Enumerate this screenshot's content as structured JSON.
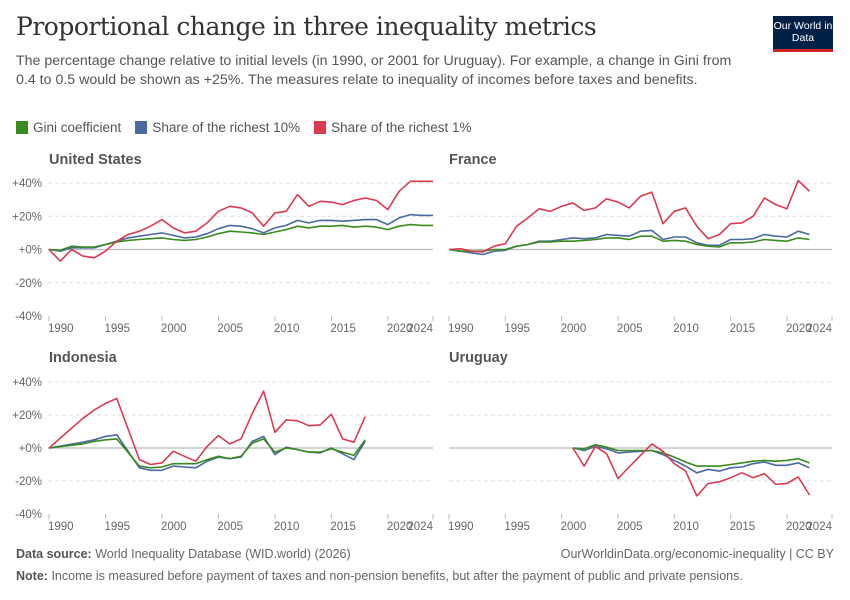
{
  "header": {
    "title": "Proportional change in three inequality metrics",
    "subtitle": "The percentage change relative to initial levels (in 1990, or 2001 for Uruguay). For example, a change in Gini from 0.4 to 0.5 would be shown as +25%. The measures relate to inequality of incomes before taxes and benefits.",
    "logo_text": "Our World in Data"
  },
  "footer": {
    "source_label": "Data source:",
    "source_text": "World Inequality Database (WID.world) (2026)",
    "url": "OurWorldinData.org/economic-inequality | CC BY",
    "note_label": "Note:",
    "note_text": "Income is measured before payment of taxes and non-pension benefits, but after the payment of public and private pensions."
  },
  "chart_data": {
    "type": "line",
    "layout": "small-multiples 2x2",
    "xlim": [
      1990,
      2024
    ],
    "ylim": [
      -40,
      40
    ],
    "xticks": [
      "1990",
      "1995",
      "2000",
      "2005",
      "2010",
      "2015",
      "2020",
      "2024"
    ],
    "yticks": [
      "+40%",
      "+20%",
      "+0%",
      "-20%",
      "-40%"
    ],
    "ytick_values": [
      40,
      20,
      0,
      -20,
      -40
    ],
    "xtick_values": [
      1990,
      1995,
      2000,
      2005,
      2010,
      2015,
      2020,
      2024
    ],
    "grid": "horizontal dashed",
    "legend_position": "top-left",
    "legend": [
      {
        "name": "Gini coefficient",
        "color": "#3a8b1f"
      },
      {
        "name": "Share of the richest 10%",
        "color": "#4a6a9e"
      },
      {
        "name": "Share of the richest 1%",
        "color": "#dc3a52"
      }
    ],
    "panels": [
      {
        "title": "United States",
        "years": [
          1990,
          1991,
          1992,
          1993,
          1994,
          1995,
          1996,
          1997,
          1998,
          1999,
          2000,
          2001,
          2002,
          2003,
          2004,
          2005,
          2006,
          2007,
          2008,
          2009,
          2010,
          2011,
          2012,
          2013,
          2014,
          2015,
          2016,
          2017,
          2018,
          2019,
          2020,
          2021,
          2022,
          2023,
          2024
        ],
        "series": [
          {
            "name": "Share of the richest 10%",
            "values": [
              0,
              -1,
              1,
              1,
              1,
              3,
              5,
              7,
              8,
              9,
              10,
              8.5,
              7,
              7.5,
              9.5,
              12.5,
              14.5,
              14,
              12.5,
              10,
              13,
              14.5,
              17.5,
              16,
              17.5,
              17.5,
              17,
              17.5,
              18,
              18,
              15,
              19,
              21,
              20.5,
              20.5
            ]
          },
          {
            "name": "Gini coefficient",
            "values": [
              0,
              -0.5,
              2,
              1.5,
              1.5,
              3,
              4.5,
              5.5,
              6,
              6.5,
              7,
              6,
              5.5,
              6,
              7.5,
              9.5,
              11,
              10.5,
              10,
              9,
              10.5,
              12,
              14,
              13,
              14,
              14,
              14.5,
              13.5,
              14,
              13.5,
              12,
              14,
              15,
              14.5,
              14.5
            ]
          },
          {
            "name": "Share of the richest 1%",
            "values": [
              0,
              -7,
              0,
              -4,
              -5,
              -1,
              5,
              9,
              11,
              14,
              18,
              13,
              10,
              11,
              16,
              23,
              26,
              25,
              22,
              14,
              22,
              23,
              33,
              26,
              29,
              28.5,
              27,
              29.5,
              31,
              29.5,
              24,
              35,
              41,
              41,
              41
            ]
          }
        ]
      },
      {
        "title": "France",
        "years": [
          1990,
          1991,
          1992,
          1993,
          1994,
          1995,
          1996,
          1997,
          1998,
          1999,
          2000,
          2001,
          2002,
          2003,
          2004,
          2005,
          2006,
          2007,
          2008,
          2009,
          2010,
          2011,
          2012,
          2013,
          2014,
          2015,
          2016,
          2017,
          2018,
          2019,
          2020,
          2021,
          2022
        ],
        "series": [
          {
            "name": "Share of the richest 10%",
            "values": [
              0,
              -1,
              -2,
              -3,
              -1,
              -0.5,
              2,
              3,
              5,
              5,
              6,
              7,
              6.5,
              7,
              9,
              8.5,
              8,
              11,
              11.5,
              6,
              7.5,
              7.5,
              4,
              2.5,
              2.5,
              6,
              6,
              6.5,
              9,
              8,
              7.5,
              11,
              9
            ]
          },
          {
            "name": "Gini coefficient",
            "values": [
              0,
              -1,
              -1,
              -1,
              0,
              0,
              2,
              3,
              4.5,
              4.5,
              5,
              5,
              5.5,
              6,
              7,
              7,
              6,
              8,
              8,
              5,
              5.5,
              5,
              3,
              2,
              1.5,
              4,
              4,
              4.5,
              6,
              5.5,
              5,
              7,
              6
            ]
          },
          {
            "name": "Share of the richest 1%",
            "values": [
              0,
              0.5,
              -1,
              -1.5,
              2,
              3.5,
              14,
              19,
              24.5,
              23,
              26,
              28,
              23.5,
              25,
              30.5,
              28.5,
              25,
              32,
              34.5,
              15.5,
              23,
              25,
              14,
              6.5,
              9,
              15.5,
              16,
              20,
              31,
              27,
              24.5,
              41.5,
              35
            ]
          }
        ]
      },
      {
        "title": "Indonesia",
        "years": [
          1990,
          1993,
          1994,
          1995,
          1996,
          1998,
          1999,
          2000,
          2001,
          2002,
          2003,
          2004,
          2005,
          2006,
          2007,
          2008,
          2009,
          2010,
          2011,
          2012,
          2013,
          2014,
          2015,
          2016,
          2017,
          2018
        ],
        "series": [
          {
            "name": "Share of the richest 10%",
            "values": [
              0,
              3.5,
              5,
              7,
              8,
              -12,
              -13.5,
              -13.5,
              -11,
              -11.5,
              -12,
              -8,
              -5.5,
              -6.5,
              -5.5,
              4,
              7,
              -4,
              0.5,
              -1,
              -2.5,
              -3,
              0,
              -3.5,
              -7,
              4
            ]
          },
          {
            "name": "Gini coefficient",
            "values": [
              0,
              2.5,
              4,
              5,
              5.5,
              -11,
              -12,
              -11.5,
              -9.5,
              -9.5,
              -9.5,
              -7,
              -5,
              -6.5,
              -5,
              3,
              5.5,
              -2.5,
              0,
              -1,
              -2.5,
              -2.5,
              -0.5,
              -2.5,
              -4.5,
              5
            ]
          },
          {
            "name": "Share of the richest 1%",
            "values": [
              0,
              18,
              23,
              27,
              30,
              -7,
              -10,
              -9,
              -2,
              -5,
              -8,
              1,
              7.5,
              2.5,
              5.5,
              21,
              34.5,
              9.5,
              17,
              16.5,
              13.5,
              14,
              20.5,
              5.5,
              3.5,
              19
            ]
          }
        ]
      },
      {
        "title": "Uruguay",
        "years": [
          2001,
          2002,
          2003,
          2004,
          2005,
          2006,
          2007,
          2008,
          2009,
          2010,
          2011,
          2012,
          2013,
          2014,
          2015,
          2016,
          2017,
          2018,
          2019,
          2020,
          2021,
          2022
        ],
        "series": [
          {
            "name": "Share of the richest 10%",
            "values": [
              0,
              -1.5,
              1,
              -0.5,
              -3,
              -2.5,
              -2,
              -1.5,
              -4,
              -7.5,
              -11,
              -15,
              -13,
              -14,
              -12,
              -11.5,
              -9.5,
              -8.5,
              -10.5,
              -10.5,
              -9,
              -12
            ]
          },
          {
            "name": "Gini coefficient",
            "values": [
              0,
              -0.5,
              2,
              0.5,
              -1.5,
              -1.5,
              -1.5,
              -1.5,
              -3,
              -5.5,
              -8.5,
              -11,
              -11,
              -11,
              -10,
              -9,
              -8,
              -7.5,
              -8,
              -7.5,
              -6.5,
              -9
            ]
          },
          {
            "name": "Share of the richest 1%",
            "values": [
              0,
              -11,
              1,
              -3.5,
              -18.5,
              -11.5,
              -4.5,
              2.5,
              -2,
              -9.5,
              -14,
              -29,
              -21.5,
              -20.5,
              -18,
              -15,
              -18,
              -15.5,
              -22,
              -21.5,
              -17.5,
              -28.5
            ]
          }
        ]
      }
    ]
  }
}
